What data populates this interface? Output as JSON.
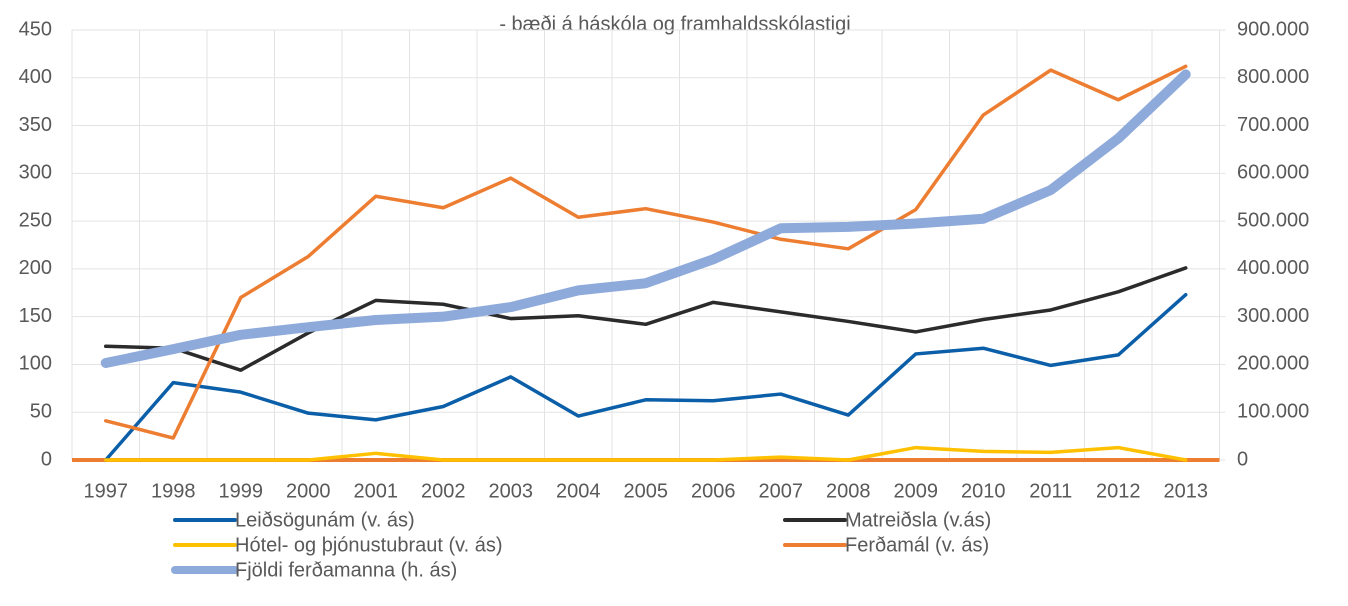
{
  "chart_data": {
    "type": "line",
    "subtitle": "- bæði á háskóla og framhaldsskólastigi",
    "categories": [
      "1997",
      "1998",
      "1999",
      "2000",
      "2001",
      "2002",
      "2003",
      "2004",
      "2005",
      "2006",
      "2007",
      "2008",
      "2009",
      "2010",
      "2011",
      "2012",
      "2013"
    ],
    "series": [
      {
        "name": "Leiðsögunám (v. ás)",
        "color": "#0b5ea8",
        "values": [
          0,
          81,
          71,
          49,
          42,
          56,
          87,
          46,
          63,
          62,
          69,
          47,
          111,
          117,
          99,
          110,
          173
        ]
      },
      {
        "name": "Matreiðsla (v.ás)",
        "color": "#2b2b2b",
        "values": [
          119,
          117,
          94,
          133,
          167,
          163,
          148,
          151,
          142,
          165,
          155,
          145,
          134,
          147,
          157,
          176,
          201
        ]
      },
      {
        "name": "Hótel- og þjónustubraut (v. ás)",
        "color": "#ffc000",
        "values": [
          0,
          0,
          0,
          0,
          7,
          0,
          0,
          0,
          0,
          0,
          3,
          0,
          13,
          9,
          8,
          13,
          0
        ]
      },
      {
        "name": "Ferðamál (v. ás)",
        "color": "#ed7d31",
        "values": [
          41,
          23,
          170,
          213,
          276,
          264,
          295,
          254,
          263,
          249,
          231,
          221,
          262,
          361,
          408,
          377,
          412
        ]
      },
      {
        "name": "Fjöldi ferðamanna (h. ás)",
        "color": "#8eaadb",
        "axis": "y2",
        "values": [
          203000,
          232000,
          262000,
          278000,
          293000,
          300000,
          320000,
          355000,
          370000,
          420000,
          485000,
          488000,
          495000,
          505000,
          565000,
          673000,
          807000
        ]
      }
    ],
    "ylim": [
      0,
      450
    ],
    "yticks": [
      0,
      50,
      100,
      150,
      200,
      250,
      300,
      350,
      400,
      450
    ],
    "y2lim": [
      0,
      900000
    ],
    "y2ticks": [
      {
        "value": 0,
        "label": "0"
      },
      {
        "value": 100000,
        "label": "100.000"
      },
      {
        "value": 200000,
        "label": "200.000"
      },
      {
        "value": 300000,
        "label": "300.000"
      },
      {
        "value": 400000,
        "label": "400.000"
      },
      {
        "value": 500000,
        "label": "500.000"
      },
      {
        "value": 600000,
        "label": "600.000"
      },
      {
        "value": 700000,
        "label": "700.000"
      },
      {
        "value": 800000,
        "label": "800.000"
      },
      {
        "value": 900000,
        "label": "900.000"
      }
    ],
    "grid": true
  }
}
